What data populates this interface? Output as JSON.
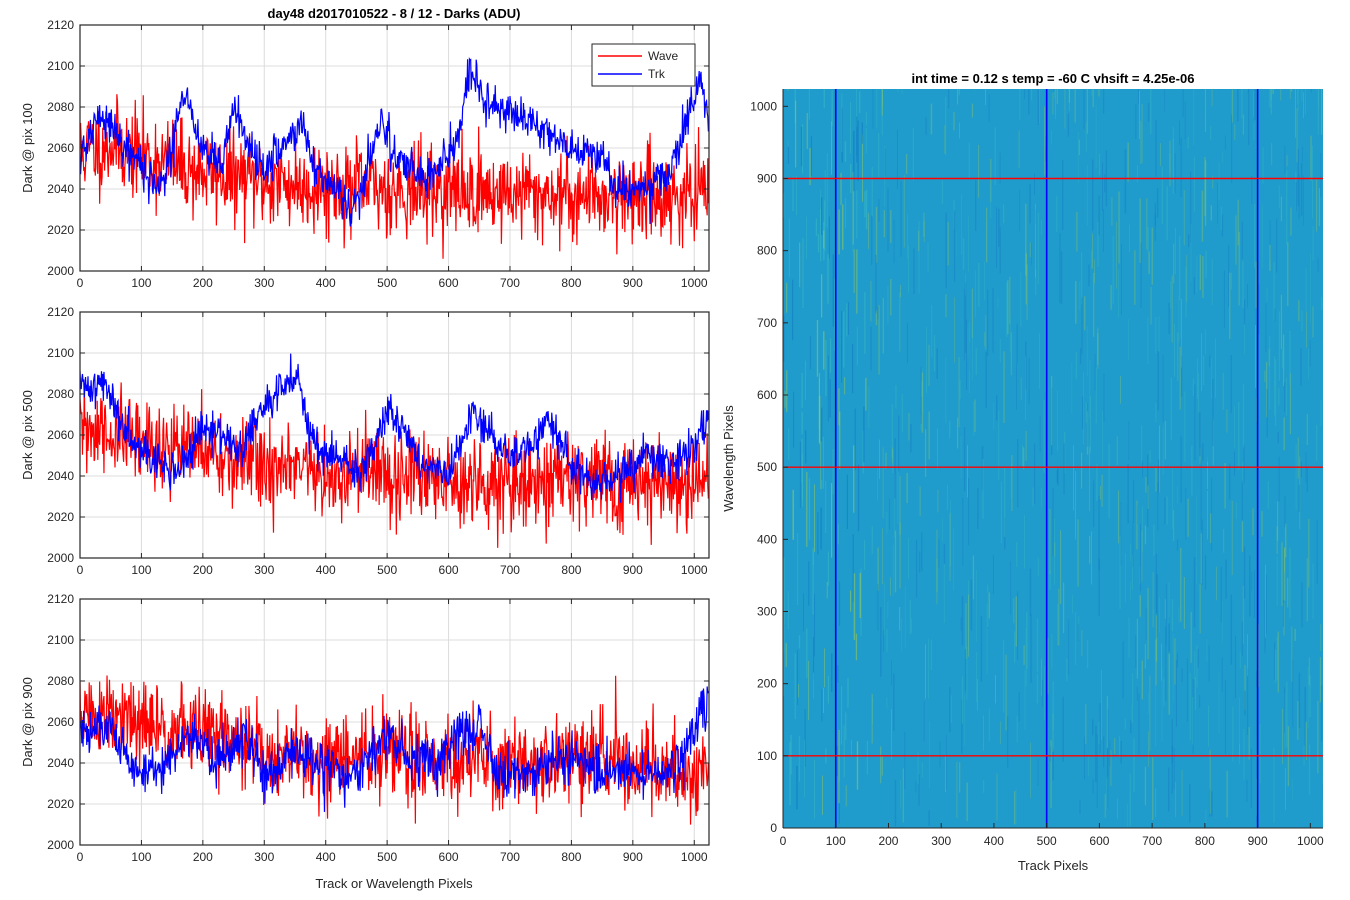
{
  "figure": {
    "title": "day48 d2017010522 - 8 / 12 - Darks (ADU)",
    "shared_xlabel": "Track or Wavelength Pixels"
  },
  "chart_data": [
    {
      "type": "line",
      "ylabel": "Dark @ pix 100",
      "xlim": [
        0,
        1024
      ],
      "ylim": [
        2000,
        2120
      ],
      "xticks": [
        0,
        100,
        200,
        300,
        400,
        500,
        600,
        700,
        800,
        900,
        1000
      ],
      "yticks": [
        2000,
        2020,
        2040,
        2060,
        2080,
        2100,
        2120
      ],
      "grid": true,
      "legend": {
        "position": "top-right",
        "entries": [
          "Wave",
          "Trk"
        ]
      },
      "series": [
        {
          "name": "Wave",
          "color": "#ff0000",
          "noise": {
            "mean": 2040,
            "std": 11,
            "seed": 11
          },
          "trend": [
            [
              0,
              2058
            ],
            [
              50,
              2062
            ],
            [
              100,
              2056
            ],
            [
              200,
              2048
            ],
            [
              300,
              2043
            ],
            [
              400,
              2041
            ],
            [
              500,
              2040
            ],
            [
              600,
              2039
            ],
            [
              700,
              2038
            ],
            [
              800,
              2037
            ],
            [
              900,
              2037
            ],
            [
              1024,
              2036
            ]
          ]
        },
        {
          "name": "Trk",
          "color": "#0000ff",
          "noise": {
            "std": 5,
            "seed": 21
          },
          "trend": [
            [
              0,
              2055
            ],
            [
              30,
              2075
            ],
            [
              60,
              2068
            ],
            [
              100,
              2050
            ],
            [
              130,
              2040
            ],
            [
              170,
              2085
            ],
            [
              200,
              2060
            ],
            [
              230,
              2050
            ],
            [
              250,
              2080
            ],
            [
              280,
              2060
            ],
            [
              300,
              2048
            ],
            [
              340,
              2065
            ],
            [
              360,
              2070
            ],
            [
              390,
              2048
            ],
            [
              420,
              2040
            ],
            [
              440,
              2030
            ],
            [
              460,
              2040
            ],
            [
              490,
              2075
            ],
            [
              510,
              2058
            ],
            [
              560,
              2045
            ],
            [
              600,
              2055
            ],
            [
              620,
              2070
            ],
            [
              635,
              2100
            ],
            [
              660,
              2080
            ],
            [
              700,
              2078
            ],
            [
              750,
              2070
            ],
            [
              780,
              2065
            ],
            [
              800,
              2060
            ],
            [
              850,
              2055
            ],
            [
              880,
              2040
            ],
            [
              930,
              2040
            ],
            [
              960,
              2050
            ],
            [
              1000,
              2080
            ],
            [
              1010,
              2095
            ],
            [
              1024,
              2075
            ]
          ]
        }
      ]
    },
    {
      "type": "line",
      "ylabel": "Dark @ pix 500",
      "xlim": [
        0,
        1024
      ],
      "ylim": [
        2000,
        2120
      ],
      "xticks": [
        0,
        100,
        200,
        300,
        400,
        500,
        600,
        700,
        800,
        900,
        1000
      ],
      "yticks": [
        2000,
        2020,
        2040,
        2060,
        2080,
        2100,
        2120
      ],
      "grid": true,
      "series": [
        {
          "name": "Wave",
          "color": "#ff0000",
          "noise": {
            "std": 11,
            "seed": 31
          },
          "trend": [
            [
              0,
              2062
            ],
            [
              100,
              2057
            ],
            [
              200,
              2052
            ],
            [
              300,
              2045
            ],
            [
              400,
              2040
            ],
            [
              500,
              2040
            ],
            [
              600,
              2039
            ],
            [
              700,
              2038
            ],
            [
              800,
              2038
            ],
            [
              900,
              2037
            ],
            [
              1024,
              2037
            ]
          ]
        },
        {
          "name": "Trk",
          "color": "#0000ff",
          "noise": {
            "std": 5,
            "seed": 41
          },
          "trend": [
            [
              0,
              2083
            ],
            [
              40,
              2085
            ],
            [
              70,
              2065
            ],
            [
              100,
              2055
            ],
            [
              130,
              2045
            ],
            [
              160,
              2042
            ],
            [
              200,
              2062
            ],
            [
              240,
              2060
            ],
            [
              260,
              2050
            ],
            [
              290,
              2070
            ],
            [
              355,
              2090
            ],
            [
              380,
              2055
            ],
            [
              420,
              2048
            ],
            [
              460,
              2040
            ],
            [
              500,
              2075
            ],
            [
              530,
              2060
            ],
            [
              560,
              2045
            ],
            [
              600,
              2040
            ],
            [
              640,
              2070
            ],
            [
              670,
              2060
            ],
            [
              700,
              2050
            ],
            [
              740,
              2055
            ],
            [
              760,
              2070
            ],
            [
              800,
              2045
            ],
            [
              840,
              2035
            ],
            [
              880,
              2040
            ],
            [
              920,
              2050
            ],
            [
              960,
              2045
            ],
            [
              1000,
              2055
            ],
            [
              1024,
              2070
            ]
          ]
        }
      ]
    },
    {
      "type": "line",
      "ylabel": "Dark @ pix 900",
      "xlabel": "Track or Wavelength Pixels",
      "xlim": [
        0,
        1024
      ],
      "ylim": [
        2000,
        2120
      ],
      "xticks": [
        0,
        100,
        200,
        300,
        400,
        500,
        600,
        700,
        800,
        900,
        1000
      ],
      "yticks": [
        2000,
        2020,
        2040,
        2060,
        2080,
        2100,
        2120
      ],
      "grid": true,
      "series": [
        {
          "name": "Wave",
          "color": "#ff0000",
          "noise": {
            "std": 11,
            "seed": 51
          },
          "trend": [
            [
              0,
              2065
            ],
            [
              100,
              2058
            ],
            [
              200,
              2055
            ],
            [
              300,
              2045
            ],
            [
              400,
              2040
            ],
            [
              500,
              2045
            ],
            [
              600,
              2042
            ],
            [
              700,
              2040
            ],
            [
              800,
              2042
            ],
            [
              900,
              2040
            ],
            [
              1024,
              2035
            ]
          ]
        },
        {
          "name": "Trk",
          "color": "#0000ff",
          "noise": {
            "std": 6,
            "seed": 61
          },
          "trend": [
            [
              0,
              2055
            ],
            [
              50,
              2058
            ],
            [
              90,
              2035
            ],
            [
              130,
              2038
            ],
            [
              180,
              2055
            ],
            [
              220,
              2040
            ],
            [
              260,
              2055
            ],
            [
              300,
              2035
            ],
            [
              350,
              2045
            ],
            [
              400,
              2040
            ],
            [
              440,
              2030
            ],
            [
              480,
              2045
            ],
            [
              500,
              2055
            ],
            [
              540,
              2040
            ],
            [
              580,
              2040
            ],
            [
              620,
              2055
            ],
            [
              650,
              2060
            ],
            [
              680,
              2035
            ],
            [
              720,
              2035
            ],
            [
              760,
              2040
            ],
            [
              800,
              2045
            ],
            [
              850,
              2035
            ],
            [
              880,
              2035
            ],
            [
              940,
              2035
            ],
            [
              980,
              2040
            ],
            [
              1000,
              2055
            ],
            [
              1015,
              2070
            ],
            [
              1024,
              2065
            ]
          ]
        }
      ]
    },
    {
      "type": "heatmap",
      "title": "int time = 0.12 s    temp = -60 C    vhsift = 4.25e-06",
      "xlabel": "Track Pixels",
      "ylabel": "Wavelength Pixels",
      "xlim": [
        0,
        1024
      ],
      "ylim": [
        0,
        1024
      ],
      "xticks": [
        0,
        100,
        200,
        300,
        400,
        500,
        600,
        700,
        800,
        900,
        1000
      ],
      "yticks": [
        0,
        100,
        200,
        300,
        400,
        500,
        600,
        700,
        800,
        900,
        1000
      ],
      "colormap": "parula",
      "colors": {
        "base": "#1f9bcc",
        "low": "#137fc3",
        "mid": "#35b5c4",
        "high": "#9ccc52"
      },
      "vertical_markers": {
        "x": [
          100,
          500,
          900
        ],
        "color": "#0000ff"
      },
      "horizontal_markers": {
        "y": [
          100,
          500,
          900
        ],
        "color": "#ff0000"
      }
    }
  ]
}
